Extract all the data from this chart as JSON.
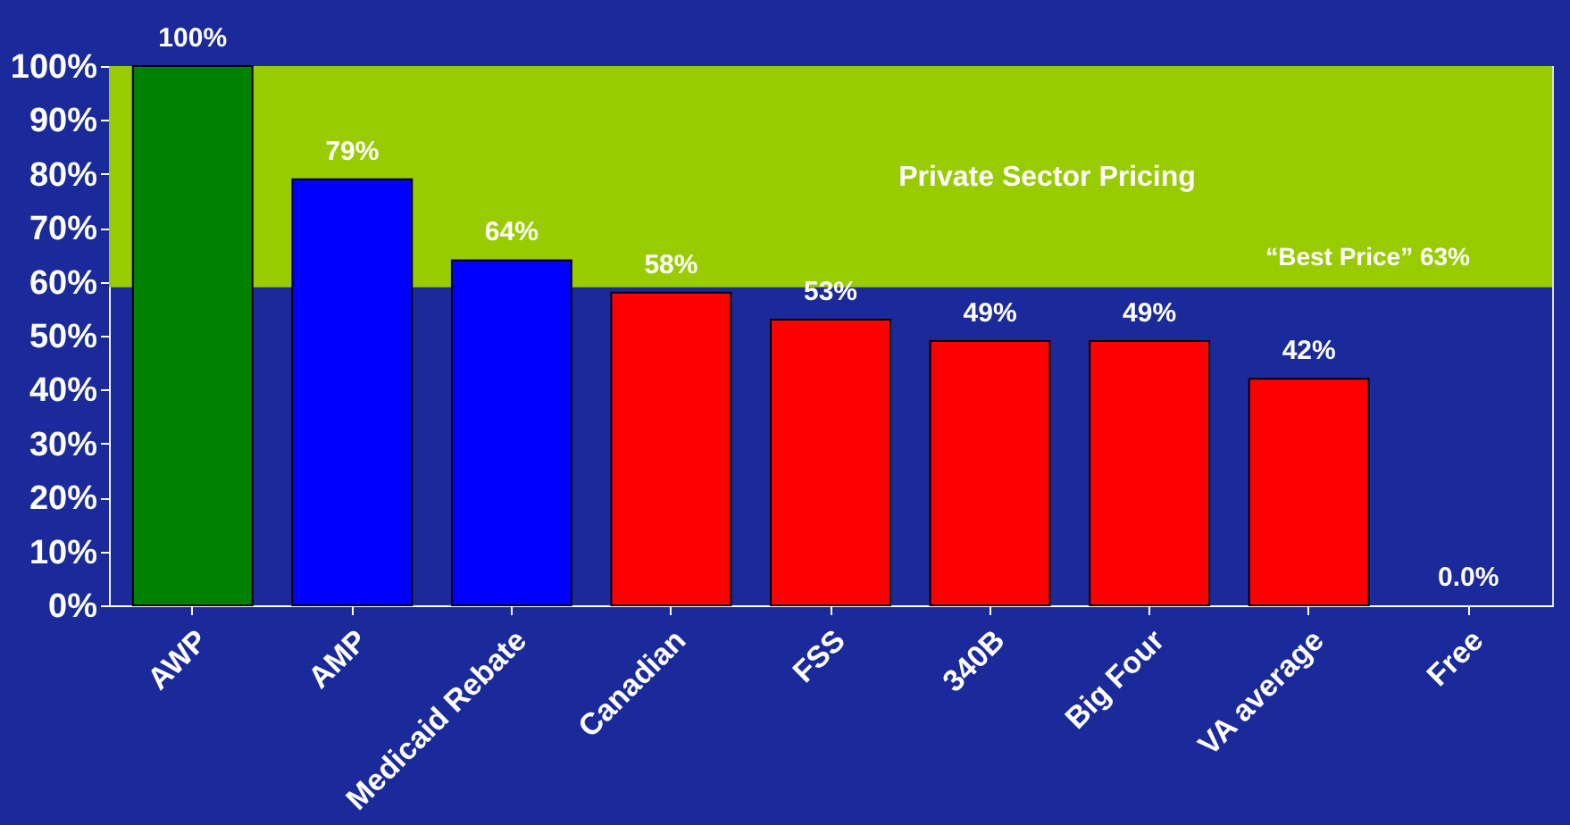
{
  "chart_data": {
    "type": "bar",
    "categories": [
      "AWP",
      "AMP",
      "Medicaid Rebate",
      "Canadian",
      "FSS",
      "340B",
      "Big Four",
      "VA average",
      "Free"
    ],
    "values": [
      100,
      79,
      64,
      58,
      53,
      49,
      49,
      42,
      0
    ],
    "colors": [
      "#008000",
      "#0000ff",
      "#0000ff",
      "#ff0000",
      "#ff0000",
      "#ff0000",
      "#ff0000",
      "#ff0000",
      "#ff0000"
    ],
    "value_labels": [
      "100%",
      "79%",
      "64%",
      "58%",
      "53%",
      "49%",
      "49%",
      "42%",
      "0.0%"
    ],
    "ylim": [
      0,
      100
    ],
    "yticks": [
      {
        "value": 0,
        "label": "0%"
      },
      {
        "value": 10,
        "label": "10%"
      },
      {
        "value": 20,
        "label": "20%"
      },
      {
        "value": 30,
        "label": "30%"
      },
      {
        "value": 40,
        "label": "40%"
      },
      {
        "value": 50,
        "label": "50%"
      },
      {
        "value": 60,
        "label": "60%"
      },
      {
        "value": 70,
        "label": "70%"
      },
      {
        "value": 80,
        "label": "80%"
      },
      {
        "value": 90,
        "label": "90%"
      },
      {
        "value": 100,
        "label": "100%"
      }
    ],
    "bands": [
      {
        "axis": "y",
        "from": 59,
        "to": 100,
        "label": "Private Sector Pricing",
        "color": "#99cc00"
      }
    ],
    "annotations": [
      "“Best Price”  63%"
    ],
    "grid": false
  }
}
